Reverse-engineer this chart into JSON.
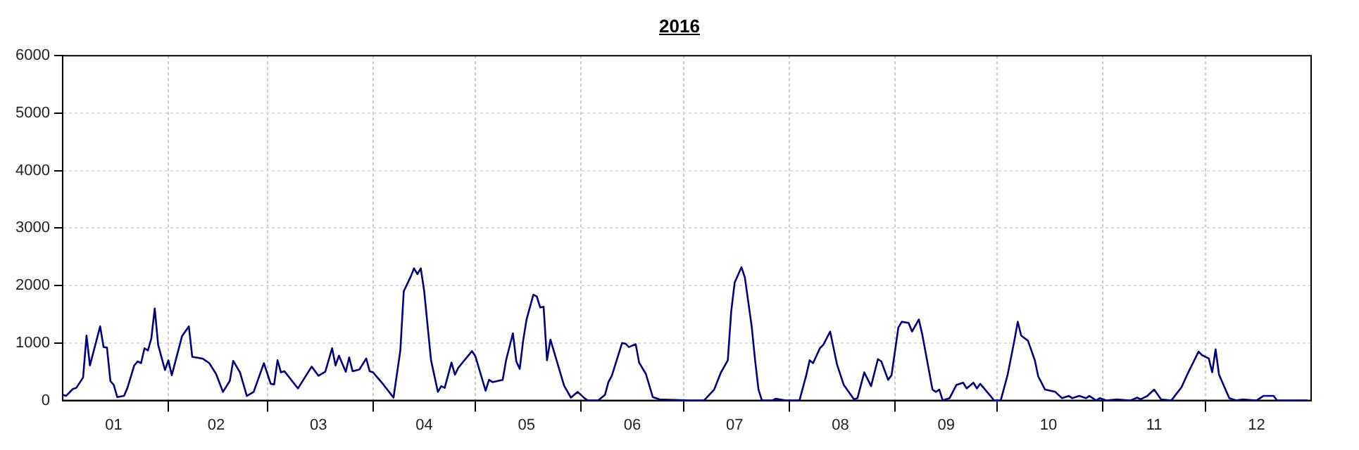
{
  "chart_data": {
    "type": "line",
    "title": "2016",
    "x": [
      "2016-01-01",
      "2016-01-02",
      "2016-01-04",
      "2016-01-05",
      "2016-01-07",
      "2016-01-08",
      "2016-01-09",
      "2016-01-12",
      "2016-01-13",
      "2016-01-14",
      "2016-01-15",
      "2016-01-16",
      "2016-01-17",
      "2016-01-19",
      "2016-01-20",
      "2016-01-22",
      "2016-01-23",
      "2016-01-24",
      "2016-01-25",
      "2016-01-26",
      "2016-01-27",
      "2016-01-28",
      "2016-01-29",
      "2016-01-31",
      "2016-02-01",
      "2016-02-02",
      "2016-02-05",
      "2016-02-07",
      "2016-02-08",
      "2016-02-11",
      "2016-02-13",
      "2016-02-15",
      "2016-02-17",
      "2016-02-19",
      "2016-02-20",
      "2016-02-22",
      "2016-02-24",
      "2016-02-26",
      "2016-02-29",
      "2016-03-02",
      "2016-03-03",
      "2016-03-04",
      "2016-03-05",
      "2016-03-06",
      "2016-03-10",
      "2016-03-14",
      "2016-03-16",
      "2016-03-18",
      "2016-03-20",
      "2016-03-21",
      "2016-03-22",
      "2016-03-24",
      "2016-03-25",
      "2016-03-26",
      "2016-03-28",
      "2016-03-30",
      "2016-03-31",
      "2016-04-01",
      "2016-04-04",
      "2016-04-07",
      "2016-04-09",
      "2016-04-10",
      "2016-04-12",
      "2016-04-13",
      "2016-04-14",
      "2016-04-15",
      "2016-04-16",
      "2016-04-18",
      "2016-04-20",
      "2016-04-21",
      "2016-04-22",
      "2016-04-24",
      "2016-04-25",
      "2016-04-26",
      "2016-04-30",
      "2016-05-01",
      "2016-05-04",
      "2016-05-05",
      "2016-05-06",
      "2016-05-09",
      "2016-05-10",
      "2016-05-12",
      "2016-05-13",
      "2016-05-14",
      "2016-05-15",
      "2016-05-16",
      "2016-05-18",
      "2016-05-19",
      "2016-05-20",
      "2016-05-21",
      "2016-05-22",
      "2016-05-23",
      "2016-05-25",
      "2016-05-27",
      "2016-05-29",
      "2016-05-31",
      "2016-06-02",
      "2016-06-03",
      "2016-06-06",
      "2016-06-08",
      "2016-06-09",
      "2016-06-10",
      "2016-06-13",
      "2016-06-14",
      "2016-06-15",
      "2016-06-17",
      "2016-06-18",
      "2016-06-20",
      "2016-06-22",
      "2016-06-24",
      "2016-07-03",
      "2016-07-07",
      "2016-07-10",
      "2016-07-12",
      "2016-07-14",
      "2016-07-15",
      "2016-07-16",
      "2016-07-18",
      "2016-07-19",
      "2016-07-21",
      "2016-07-22",
      "2016-07-23",
      "2016-07-24",
      "2016-07-27",
      "2016-07-28",
      "2016-07-31",
      "2016-08-04",
      "2016-08-06",
      "2016-08-07",
      "2016-08-08",
      "2016-08-10",
      "2016-08-11",
      "2016-08-13",
      "2016-08-15",
      "2016-08-17",
      "2016-08-20",
      "2016-08-21",
      "2016-08-23",
      "2016-08-25",
      "2016-08-27",
      "2016-08-28",
      "2016-08-30",
      "2016-08-31",
      "2016-09-02",
      "2016-09-03",
      "2016-09-05",
      "2016-09-06",
      "2016-09-08",
      "2016-09-09",
      "2016-09-12",
      "2016-09-13",
      "2016-09-14",
      "2016-09-15",
      "2016-09-17",
      "2016-09-19",
      "2016-09-21",
      "2016-09-22",
      "2016-09-24",
      "2016-09-25",
      "2016-09-26",
      "2016-09-29",
      "2016-09-30",
      "2016-10-02",
      "2016-10-04",
      "2016-10-06",
      "2016-10-07",
      "2016-10-08",
      "2016-10-10",
      "2016-10-12",
      "2016-10-13",
      "2016-10-15",
      "2016-10-18",
      "2016-10-20",
      "2016-10-22",
      "2016-10-23",
      "2016-10-25",
      "2016-10-27",
      "2016-10-28",
      "2016-10-30",
      "2016-10-31",
      "2016-11-02",
      "2016-11-05",
      "2016-11-09",
      "2016-11-11",
      "2016-11-12",
      "2016-11-14",
      "2016-11-16",
      "2016-11-18",
      "2016-11-21",
      "2016-11-24",
      "2016-11-26",
      "2016-11-29",
      "2016-11-30",
      "2016-12-02",
      "2016-12-03",
      "2016-12-04",
      "2016-12-05",
      "2016-12-08",
      "2016-12-10",
      "2016-12-12",
      "2016-12-16",
      "2016-12-18",
      "2016-12-21",
      "2016-12-22",
      "2016-12-31"
    ],
    "series": [
      {
        "color": "#000080",
        "values": [
          100,
          80,
          200,
          220,
          400,
          1130,
          610,
          1290,
          930,
          920,
          340,
          270,
          60,
          80,
          220,
          610,
          680,
          650,
          910,
          870,
          1080,
          1600,
          970,
          530,
          700,
          440,
          1120,
          1290,
          760,
          730,
          650,
          460,
          150,
          340,
          690,
          490,
          80,
          150,
          650,
          290,
          280,
          700,
          490,
          510,
          210,
          590,
          430,
          500,
          910,
          610,
          780,
          500,
          750,
          510,
          540,
          730,
          510,
          490,
          280,
          50,
          870,
          1900,
          2150,
          2300,
          2200,
          2300,
          1900,
          700,
          150,
          250,
          220,
          660,
          450,
          570,
          860,
          770,
          170,
          360,
          320,
          360,
          700,
          1170,
          680,
          550,
          1040,
          1410,
          1840,
          1810,
          1620,
          1630,
          700,
          1060,
          660,
          260,
          50,
          150,
          40,
          0,
          0,
          100,
          320,
          430,
          1000,
          990,
          930,
          980,
          660,
          460,
          60,
          20,
          0,
          0,
          190,
          490,
          700,
          1550,
          2050,
          2320,
          2140,
          1290,
          700,
          190,
          0,
          0,
          30,
          0,
          0,
          440,
          700,
          650,
          910,
          970,
          1200,
          630,
          270,
          20,
          40,
          490,
          250,
          720,
          680,
          360,
          440,
          1270,
          1370,
          1350,
          1200,
          1410,
          1150,
          190,
          150,
          190,
          0,
          40,
          270,
          310,
          210,
          310,
          210,
          290,
          80,
          0,
          0,
          440,
          1040,
          1370,
          1130,
          1040,
          700,
          420,
          190,
          150,
          40,
          80,
          40,
          80,
          40,
          80,
          0,
          40,
          0,
          20,
          0,
          50,
          20,
          80,
          190,
          20,
          0,
          230,
          490,
          850,
          790,
          730,
          490,
          890,
          450,
          40,
          0,
          20,
          0,
          80,
          80,
          0,
          0
        ]
      }
    ],
    "xlim": [
      "2016-01-01",
      "2017-01-01"
    ],
    "xticks": [
      {
        "value": "2016-01-16",
        "label": "01"
      },
      {
        "value": "2016-02-01",
        "label": null
      },
      {
        "value": "2016-02-15",
        "label": "02"
      },
      {
        "value": "2016-03-01",
        "label": null
      },
      {
        "value": "2016-03-16",
        "label": "03"
      },
      {
        "value": "2016-04-01",
        "label": null
      },
      {
        "value": "2016-04-16",
        "label": "04"
      },
      {
        "value": "2016-05-01",
        "label": null
      },
      {
        "value": "2016-05-16",
        "label": "05"
      },
      {
        "value": "2016-06-01",
        "label": null
      },
      {
        "value": "2016-06-16",
        "label": "06"
      },
      {
        "value": "2016-07-01",
        "label": null
      },
      {
        "value": "2016-07-16",
        "label": "07"
      },
      {
        "value": "2016-08-01",
        "label": null
      },
      {
        "value": "2016-08-16",
        "label": "08"
      },
      {
        "value": "2016-09-01",
        "label": null
      },
      {
        "value": "2016-09-16",
        "label": "09"
      },
      {
        "value": "2016-10-01",
        "label": null
      },
      {
        "value": "2016-10-16",
        "label": "10"
      },
      {
        "value": "2016-11-01",
        "label": null
      },
      {
        "value": "2016-11-16",
        "label": "11"
      },
      {
        "value": "2016-12-01",
        "label": null
      },
      {
        "value": "2016-12-16",
        "label": "12"
      }
    ],
    "ylim": [
      0,
      6000
    ],
    "yticks": [
      0,
      1000,
      2000,
      3000,
      4000,
      5000,
      6000
    ],
    "grid": true,
    "marker": "none",
    "line_style": "solid"
  }
}
